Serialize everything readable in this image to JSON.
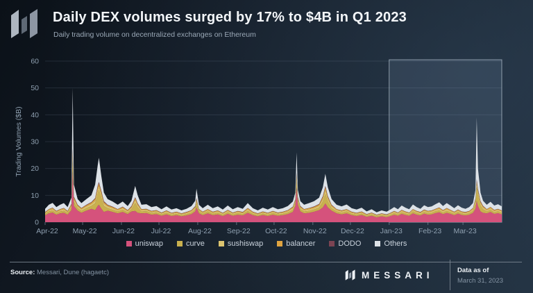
{
  "header": {
    "title": "Daily DEX volumes surged by 17% to $4B in Q1 2023",
    "subtitle": "Daily trading volume on decentralized exchanges on Ethereum"
  },
  "footer": {
    "source_label": "Source:",
    "source_value": " Messari, Dune (hagaetc)",
    "brand": "MESSARI",
    "data_as_of_label": "Data as of",
    "data_as_of_date": "March 31, 2023"
  },
  "colors": {
    "background_dark": "#121a24",
    "text_primary": "#f3f6f9",
    "text_muted": "#8fa0b0",
    "gridline": "rgba(150,170,190,0.16)",
    "axis_tick": "rgba(150,170,190,0.55)",
    "highlight_fill": "rgba(130,158,186,0.16)",
    "highlight_border": "rgba(196,210,222,0.65)",
    "footer_divider": "#7d8894"
  },
  "chart_data": {
    "type": "area",
    "stacked": true,
    "title": "Daily DEX volumes surged by 17% to $4B in Q1 2023",
    "subtitle": "Daily trading volume on decentralized exchanges on Ethereum",
    "ylabel": "Trading Volumes ($B)",
    "ylim": [
      0,
      60
    ],
    "yticks": [
      0,
      10,
      20,
      30,
      40,
      50,
      60
    ],
    "grid": true,
    "legend_position": "bottom",
    "x_unit": "days since 2022-04-01",
    "x_max": 365,
    "x_months": [
      {
        "label": "Apr-22",
        "day": 0
      },
      {
        "label": "May-22",
        "day": 30
      },
      {
        "label": "Jun-22",
        "day": 61
      },
      {
        "label": "Jul-22",
        "day": 91
      },
      {
        "label": "Aug-22",
        "day": 122
      },
      {
        "label": "Sep-22",
        "day": 153
      },
      {
        "label": "Oct-22",
        "day": 183
      },
      {
        "label": "Nov-22",
        "day": 214
      },
      {
        "label": "Dec-22",
        "day": 244
      },
      {
        "label": "Jan-23",
        "day": 275
      },
      {
        "label": "Feb-23",
        "day": 306
      },
      {
        "label": "Mar-23",
        "day": 334
      }
    ],
    "highlight": {
      "name": "Q1 2023",
      "start_day": 275,
      "end_day": 365,
      "top_value": 60.5
    },
    "x_days": [
      0,
      3,
      6,
      9,
      12,
      15,
      18,
      21,
      22,
      23,
      26,
      29,
      33,
      37,
      40,
      42,
      43,
      45,
      47,
      50,
      54,
      58,
      62,
      66,
      69,
      72,
      74,
      77,
      81,
      85,
      89,
      93,
      97,
      101,
      105,
      109,
      113,
      117,
      120,
      121,
      123,
      126,
      130,
      134,
      138,
      142,
      146,
      150,
      154,
      158,
      162,
      166,
      170,
      174,
      178,
      182,
      186,
      190,
      194,
      198,
      200,
      201,
      202,
      204,
      207,
      211,
      215,
      219,
      222,
      224,
      226,
      229,
      233,
      237,
      241,
      245,
      249,
      253,
      257,
      261,
      265,
      269,
      273,
      276,
      279,
      282,
      285,
      288,
      291,
      294,
      297,
      300,
      303,
      306,
      309,
      312,
      315,
      318,
      321,
      324,
      327,
      330,
      333,
      336,
      339,
      342,
      344,
      345,
      346,
      348,
      350,
      353,
      356,
      359,
      362,
      365
    ],
    "series": [
      {
        "name": "uniswap",
        "color": "#d5527c",
        "values": [
          2.5,
          3.3,
          3.6,
          2.8,
          3.3,
          3.5,
          2.8,
          4.5,
          19,
          6,
          4.3,
          3.5,
          4.3,
          5,
          4.5,
          6,
          6.5,
          5,
          3.8,
          4.3,
          3.8,
          3.3,
          3.8,
          3,
          4,
          4.2,
          3.5,
          3.3,
          3.4,
          2.8,
          3,
          2.4,
          2.9,
          2.3,
          2.6,
          2.2,
          2.5,
          3,
          4,
          5.5,
          3.3,
          2.6,
          3.3,
          2.6,
          2.9,
          2.3,
          3.1,
          2.4,
          2.8,
          2.5,
          3.5,
          2.6,
          2.2,
          2.7,
          2.3,
          2.8,
          2.4,
          2.6,
          3,
          3.8,
          6,
          13,
          6.5,
          4,
          3.3,
          3.5,
          3.9,
          4.5,
          5.5,
          7,
          5.5,
          4.3,
          3.3,
          2.9,
          3.3,
          2.6,
          2.3,
          2.7,
          2,
          2.4,
          1.8,
          2.2,
          1.9,
          2.3,
          2.8,
          2.4,
          3.1,
          2.7,
          2.4,
          3.3,
          2.8,
          2.5,
          3.2,
          2.8,
          2.9,
          3.4,
          3.7,
          3,
          3.5,
          3.1,
          2.6,
          3.2,
          2.7,
          2.5,
          2.8,
          3.5,
          5,
          8,
          6,
          4,
          3.5,
          3.3,
          3.8,
          3.1,
          3.4,
          2.9
        ]
      },
      {
        "name": "curve",
        "color": "#c9b04e",
        "values": [
          0.5,
          0.7,
          0.7,
          0.6,
          0.7,
          0.7,
          0.6,
          0.9,
          4,
          1.5,
          0.9,
          0.7,
          0.9,
          1,
          2.5,
          4.5,
          5.5,
          4,
          2.2,
          0.9,
          0.8,
          0.7,
          0.8,
          0.6,
          0.8,
          3,
          2,
          0.7,
          0.7,
          0.6,
          0.6,
          0.5,
          0.6,
          0.5,
          0.5,
          0.4,
          0.5,
          0.6,
          0.8,
          1.5,
          0.7,
          0.5,
          0.7,
          0.5,
          0.6,
          0.5,
          0.6,
          0.5,
          0.6,
          0.5,
          0.7,
          0.5,
          0.4,
          0.5,
          0.5,
          0.6,
          0.5,
          0.5,
          0.6,
          0.8,
          1,
          2.5,
          1.2,
          0.8,
          0.7,
          0.7,
          0.8,
          0.9,
          2.2,
          3.5,
          2.2,
          0.9,
          0.7,
          0.6,
          0.7,
          0.5,
          0.5,
          0.5,
          0.4,
          0.5,
          0.4,
          0.4,
          0.4,
          0.5,
          0.6,
          0.5,
          0.6,
          0.5,
          0.5,
          0.7,
          0.6,
          0.5,
          0.6,
          0.6,
          0.6,
          0.7,
          0.7,
          0.6,
          0.7,
          0.6,
          0.5,
          0.6,
          0.5,
          0.5,
          0.6,
          0.7,
          2,
          5,
          4,
          2.2,
          1.3,
          0.7,
          0.8,
          0.6,
          0.7,
          0.6
        ]
      },
      {
        "name": "sushiswap",
        "color": "#dcc470",
        "values": [
          0.4,
          0.5,
          0.6,
          0.4,
          0.5,
          0.6,
          0.4,
          0.7,
          2,
          1,
          0.7,
          0.6,
          0.7,
          0.8,
          1,
          1.5,
          1.5,
          1.3,
          0.9,
          0.7,
          0.6,
          0.5,
          0.6,
          0.5,
          0.6,
          1.1,
          0.8,
          0.5,
          0.5,
          0.4,
          0.5,
          0.4,
          0.5,
          0.4,
          0.4,
          0.4,
          0.4,
          0.5,
          0.6,
          1,
          0.5,
          0.4,
          0.5,
          0.4,
          0.5,
          0.4,
          0.5,
          0.4,
          0.4,
          0.4,
          0.6,
          0.4,
          0.4,
          0.4,
          0.4,
          0.4,
          0.4,
          0.4,
          0.5,
          0.6,
          0.8,
          1.5,
          0.9,
          0.6,
          0.5,
          0.6,
          0.6,
          0.7,
          1,
          1.5,
          1,
          0.7,
          0.5,
          0.5,
          0.5,
          0.4,
          0.4,
          0.4,
          0.3,
          0.4,
          0.3,
          0.4,
          0.3,
          0.4,
          0.4,
          0.4,
          0.5,
          0.4,
          0.4,
          0.5,
          0.4,
          0.4,
          0.5,
          0.4,
          0.5,
          0.5,
          0.6,
          0.5,
          0.6,
          0.5,
          0.4,
          0.5,
          0.4,
          0.4,
          0.4,
          0.6,
          1,
          1.5,
          1.3,
          0.9,
          0.7,
          0.5,
          0.6,
          0.5,
          0.5,
          0.5
        ]
      },
      {
        "name": "balancer",
        "color": "#e0a440",
        "values": [
          0.3,
          0.3,
          0.4,
          0.3,
          0.3,
          0.4,
          0.3,
          0.5,
          1.5,
          0.7,
          0.4,
          0.4,
          0.4,
          0.5,
          0.7,
          1,
          1,
          0.9,
          0.6,
          0.4,
          0.4,
          0.3,
          0.4,
          0.3,
          0.4,
          0.7,
          0.5,
          0.3,
          0.3,
          0.3,
          0.3,
          0.2,
          0.3,
          0.2,
          0.3,
          0.2,
          0.3,
          0.3,
          0.4,
          0.6,
          0.3,
          0.3,
          0.3,
          0.3,
          0.3,
          0.2,
          0.3,
          0.2,
          0.3,
          0.3,
          0.4,
          0.3,
          0.2,
          0.3,
          0.2,
          0.3,
          0.2,
          0.3,
          0.3,
          0.4,
          0.5,
          1,
          0.5,
          0.4,
          0.3,
          0.4,
          0.4,
          0.5,
          0.7,
          1,
          0.7,
          0.4,
          0.3,
          0.3,
          0.3,
          0.3,
          0.2,
          0.3,
          0.2,
          0.2,
          0.2,
          0.2,
          0.2,
          0.2,
          0.3,
          0.2,
          0.3,
          0.3,
          0.2,
          0.3,
          0.3,
          0.3,
          0.3,
          0.3,
          0.3,
          0.3,
          0.4,
          0.3,
          0.4,
          0.3,
          0.3,
          0.3,
          0.3,
          0.3,
          0.3,
          0.4,
          0.5,
          0.8,
          0.7,
          0.5,
          0.4,
          0.3,
          0.4,
          0.3,
          0.3,
          0.3
        ]
      },
      {
        "name": "DODO",
        "color": "#7c4453",
        "values": [
          0.1,
          0.1,
          0.1,
          0.1,
          0.1,
          0.1,
          0.1,
          0.2,
          1,
          0.3,
          0.2,
          0.1,
          0.2,
          0.2,
          0.3,
          0.5,
          0.5,
          0.4,
          0.3,
          0.2,
          0.2,
          0.1,
          0.2,
          0.1,
          0.2,
          0.3,
          0.2,
          0.1,
          0.1,
          0.1,
          0.1,
          0.1,
          0.1,
          0.1,
          0.1,
          0.1,
          0.1,
          0.1,
          0.2,
          0.4,
          0.1,
          0.1,
          0.1,
          0.1,
          0.1,
          0.1,
          0.1,
          0.1,
          0.1,
          0.1,
          0.1,
          0.1,
          0.1,
          0.1,
          0.1,
          0.1,
          0.1,
          0.1,
          0.1,
          0.2,
          0.2,
          0.5,
          0.3,
          0.2,
          0.1,
          0.1,
          0.2,
          0.2,
          0.3,
          0.5,
          0.3,
          0.2,
          0.1,
          0.1,
          0.1,
          0.1,
          0.1,
          0.1,
          0.1,
          0.1,
          0.1,
          0.1,
          0.1,
          0.1,
          0.1,
          0.1,
          0.1,
          0.1,
          0.1,
          0.1,
          0.1,
          0.1,
          0.1,
          0.1,
          0.1,
          0.1,
          0.1,
          0.1,
          0.1,
          0.1,
          0.1,
          0.1,
          0.1,
          0.1,
          0.1,
          0.1,
          0.3,
          0.7,
          0.5,
          0.3,
          0.2,
          0.1,
          0.1,
          0.1,
          0.1,
          0.1
        ]
      },
      {
        "name": "Others",
        "color": "#dde2e7",
        "values": [
          1.2,
          1.6,
          1.8,
          1.4,
          1.6,
          1.8,
          1.4,
          2.3,
          22.5,
          4.5,
          2.1,
          1.8,
          2.1,
          2.5,
          5,
          7.5,
          9,
          5.4,
          3.2,
          2.1,
          1.9,
          1.6,
          1.9,
          1.5,
          2,
          4.2,
          3,
          1.6,
          1.7,
          1.4,
          1.5,
          1.2,
          1.5,
          1.2,
          1.3,
          1.1,
          1.2,
          1.5,
          2,
          3.5,
          1.6,
          1.3,
          1.6,
          1.3,
          1.5,
          1.2,
          1.6,
          1.2,
          1.4,
          1.2,
          1.8,
          1.3,
          1.1,
          1.4,
          1.2,
          1.4,
          1.2,
          1.3,
          1.5,
          1.9,
          2.5,
          7.5,
          2.6,
          1.8,
          1.6,
          1.8,
          1.9,
          2.3,
          3.3,
          4.5,
          3.3,
          2.1,
          1.6,
          1.5,
          1.7,
          1.3,
          1.2,
          1.4,
          1,
          1.2,
          0.9,
          1.1,
          1,
          1.2,
          1.4,
          1.2,
          1.6,
          1.4,
          1.2,
          1.7,
          1.4,
          1.2,
          1.6,
          1.4,
          1.5,
          1.7,
          1.9,
          1.5,
          1.8,
          1.6,
          1.3,
          1.6,
          1.4,
          1.2,
          1.4,
          1.8,
          3.2,
          23,
          7.5,
          3.1,
          1.9,
          1.6,
          1.9,
          1.6,
          1.7,
          1.5
        ]
      }
    ]
  }
}
